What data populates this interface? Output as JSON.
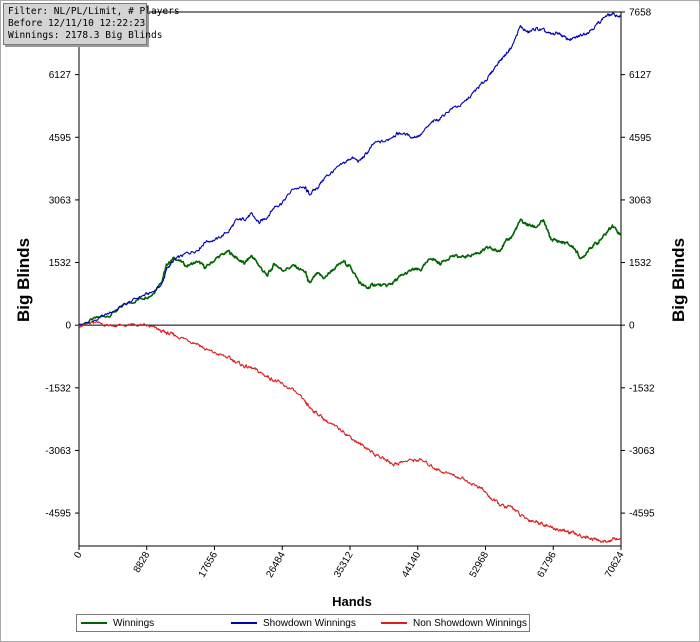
{
  "info_box": {
    "line1": "Filter: NL/PL/Limit, # Players",
    "line2": "Before 12/11/10 12:22:23",
    "line3": "Winnings: 2178.3 Big Blinds"
  },
  "chart_data": {
    "type": "line",
    "title": "",
    "xlabel": "Hands",
    "ylabel": "Big Blinds",
    "xlim": [
      0,
      70624
    ],
    "ylim": [
      -5400,
      7658
    ],
    "x_ticks": [
      "0",
      "8828",
      "17656",
      "26484",
      "35312",
      "44140",
      "52968",
      "61796",
      "70624"
    ],
    "y_ticks": [
      "7658",
      "6127",
      "4595",
      "3063",
      "1532",
      "0",
      "-1532",
      "-3063",
      "-4595"
    ],
    "grid": true,
    "legend_position": "bottom",
    "series": [
      {
        "name": "Winnings",
        "color": "#006400",
        "points": [
          [
            0,
            0
          ],
          [
            2000,
            150
          ],
          [
            4000,
            250
          ],
          [
            6000,
            500
          ],
          [
            8000,
            650
          ],
          [
            9500,
            750
          ],
          [
            10800,
            1100
          ],
          [
            11500,
            1500
          ],
          [
            12500,
            1650
          ],
          [
            14000,
            1450
          ],
          [
            15500,
            1550
          ],
          [
            16500,
            1400
          ],
          [
            18000,
            1650
          ],
          [
            19500,
            1800
          ],
          [
            20500,
            1650
          ],
          [
            21500,
            1500
          ],
          [
            22500,
            1700
          ],
          [
            23500,
            1450
          ],
          [
            24500,
            1200
          ],
          [
            25500,
            1500
          ],
          [
            26500,
            1350
          ],
          [
            28000,
            1450
          ],
          [
            29500,
            1300
          ],
          [
            30000,
            1000
          ],
          [
            31000,
            1250
          ],
          [
            32000,
            1150
          ],
          [
            33000,
            1350
          ],
          [
            34500,
            1550
          ],
          [
            35500,
            1400
          ],
          [
            36500,
            1050
          ],
          [
            37500,
            900
          ],
          [
            38500,
            1000
          ],
          [
            40000,
            950
          ],
          [
            41000,
            1050
          ],
          [
            42000,
            1200
          ],
          [
            43500,
            1350
          ],
          [
            44500,
            1350
          ],
          [
            46000,
            1650
          ],
          [
            47000,
            1500
          ],
          [
            48500,
            1700
          ],
          [
            50000,
            1650
          ],
          [
            51500,
            1750
          ],
          [
            52500,
            1800
          ],
          [
            53500,
            1900
          ],
          [
            54500,
            1800
          ],
          [
            55500,
            2000
          ],
          [
            56500,
            2200
          ],
          [
            57500,
            2550
          ],
          [
            58500,
            2450
          ],
          [
            59500,
            2400
          ],
          [
            60500,
            2550
          ],
          [
            61500,
            2100
          ],
          [
            62500,
            2050
          ],
          [
            63500,
            2000
          ],
          [
            64500,
            1900
          ],
          [
            65500,
            1600
          ],
          [
            66500,
            1900
          ],
          [
            67500,
            2000
          ],
          [
            68500,
            2200
          ],
          [
            69500,
            2450
          ],
          [
            70624,
            2200
          ]
        ]
      },
      {
        "name": "Showdown Winnings",
        "color": "#0000b4",
        "points": [
          [
            0,
            0
          ],
          [
            2000,
            100
          ],
          [
            4000,
            300
          ],
          [
            6000,
            500
          ],
          [
            8000,
            700
          ],
          [
            9500,
            800
          ],
          [
            10800,
            1000
          ],
          [
            11500,
            1400
          ],
          [
            12500,
            1600
          ],
          [
            14000,
            1750
          ],
          [
            15500,
            1850
          ],
          [
            16500,
            2050
          ],
          [
            18000,
            2100
          ],
          [
            19500,
            2300
          ],
          [
            20500,
            2550
          ],
          [
            21500,
            2600
          ],
          [
            22500,
            2700
          ],
          [
            23500,
            2500
          ],
          [
            24500,
            2650
          ],
          [
            25500,
            2900
          ],
          [
            26500,
            3000
          ],
          [
            28000,
            3350
          ],
          [
            29500,
            3350
          ],
          [
            30000,
            3200
          ],
          [
            31000,
            3350
          ],
          [
            32000,
            3600
          ],
          [
            33000,
            3750
          ],
          [
            34500,
            3950
          ],
          [
            35500,
            4100
          ],
          [
            36500,
            4000
          ],
          [
            37500,
            4200
          ],
          [
            38500,
            4450
          ],
          [
            40000,
            4500
          ],
          [
            41000,
            4650
          ],
          [
            42000,
            4700
          ],
          [
            43500,
            4600
          ],
          [
            44500,
            4650
          ],
          [
            46000,
            4950
          ],
          [
            47000,
            5050
          ],
          [
            48500,
            5300
          ],
          [
            50000,
            5400
          ],
          [
            51500,
            5700
          ],
          [
            52500,
            5900
          ],
          [
            53500,
            6100
          ],
          [
            54500,
            6400
          ],
          [
            55500,
            6600
          ],
          [
            56500,
            6850
          ],
          [
            57500,
            7300
          ],
          [
            58500,
            7150
          ],
          [
            59500,
            7250
          ],
          [
            60500,
            7200
          ],
          [
            61500,
            7100
          ],
          [
            62500,
            7150
          ],
          [
            63500,
            7000
          ],
          [
            64500,
            7000
          ],
          [
            65500,
            7100
          ],
          [
            66500,
            7200
          ],
          [
            67500,
            7350
          ],
          [
            68500,
            7550
          ],
          [
            69500,
            7600
          ],
          [
            70624,
            7550
          ]
        ]
      },
      {
        "name": "Non Showdown Winnings",
        "color": "#dc1e1e",
        "points": [
          [
            0,
            0
          ],
          [
            2000,
            50
          ],
          [
            4000,
            0
          ],
          [
            6000,
            0
          ],
          [
            8000,
            0
          ],
          [
            9500,
            -50
          ],
          [
            10800,
            -150
          ],
          [
            11500,
            -200
          ],
          [
            12500,
            -250
          ],
          [
            14000,
            -350
          ],
          [
            15500,
            -450
          ],
          [
            16500,
            -600
          ],
          [
            18000,
            -700
          ],
          [
            19500,
            -800
          ],
          [
            20500,
            -900
          ],
          [
            21500,
            -1000
          ],
          [
            22500,
            -1050
          ],
          [
            23500,
            -1150
          ],
          [
            24500,
            -1250
          ],
          [
            25500,
            -1350
          ],
          [
            26500,
            -1450
          ],
          [
            28000,
            -1600
          ],
          [
            29500,
            -1900
          ],
          [
            30000,
            -2000
          ],
          [
            31000,
            -2150
          ],
          [
            32000,
            -2300
          ],
          [
            33000,
            -2450
          ],
          [
            34500,
            -2600
          ],
          [
            35500,
            -2750
          ],
          [
            36500,
            -2900
          ],
          [
            37500,
            -3000
          ],
          [
            38500,
            -3150
          ],
          [
            40000,
            -3300
          ],
          [
            41000,
            -3400
          ],
          [
            42000,
            -3350
          ],
          [
            43500,
            -3300
          ],
          [
            44500,
            -3300
          ],
          [
            46000,
            -3450
          ],
          [
            47000,
            -3550
          ],
          [
            48500,
            -3650
          ],
          [
            50000,
            -3750
          ],
          [
            51500,
            -3900
          ],
          [
            52500,
            -4000
          ],
          [
            53500,
            -4200
          ],
          [
            54500,
            -4350
          ],
          [
            55500,
            -4450
          ],
          [
            56500,
            -4450
          ],
          [
            57500,
            -4650
          ],
          [
            58500,
            -4750
          ],
          [
            59500,
            -4800
          ],
          [
            60500,
            -4850
          ],
          [
            61500,
            -4950
          ],
          [
            62500,
            -5000
          ],
          [
            63500,
            -5050
          ],
          [
            64500,
            -5100
          ],
          [
            65500,
            -5150
          ],
          [
            66500,
            -5200
          ],
          [
            67500,
            -5250
          ],
          [
            68500,
            -5300
          ],
          [
            69500,
            -5250
          ],
          [
            70624,
            -5200
          ]
        ]
      }
    ]
  }
}
